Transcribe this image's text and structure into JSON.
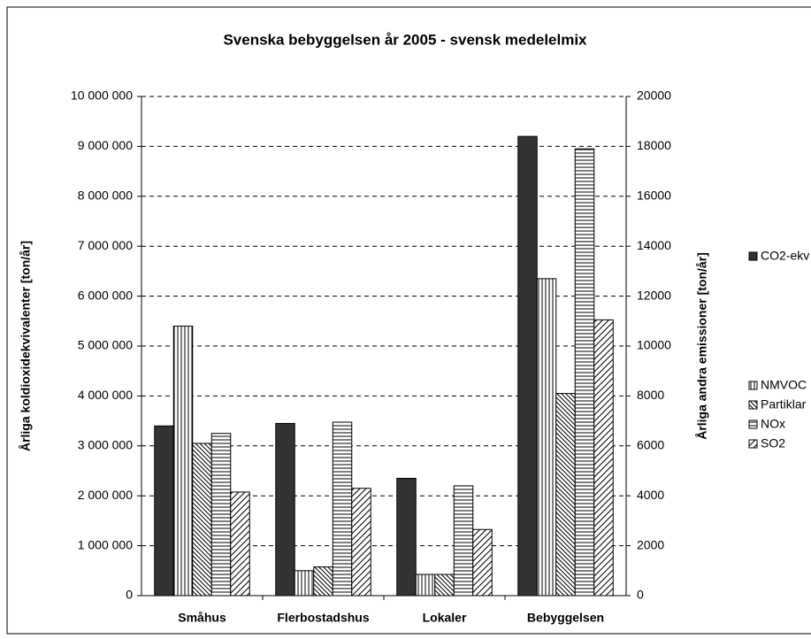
{
  "chart_data": {
    "type": "bar",
    "title": "Svenska bebyggelsen år 2005 - svensk medelelmix",
    "y_label": "Årliga koldioxidekvivalenter [ton/år]",
    "y2_label": "Årliga andra emissioner [ton/år]",
    "categories": [
      "Småhus",
      "Flerbostadshus",
      "Lokaler",
      "Bebyggelsen"
    ],
    "series": [
      {
        "name": "CO2-ekv",
        "color": "#333333",
        "pattern": "solid",
        "values": [
          3400000,
          3450000,
          2350000,
          9200000
        ]
      },
      {
        "name": "NMVOC",
        "color": "#000000",
        "pattern": "vertical",
        "axis": "y2",
        "values": [
          10800,
          1000,
          850,
          12700
        ]
      },
      {
        "name": "Partiklar",
        "color": "#000000",
        "pattern": "backslash",
        "axis": "y2",
        "values": [
          6100,
          1150,
          850,
          8100
        ]
      },
      {
        "name": "NOx",
        "color": "#000000",
        "pattern": "horizontal",
        "axis": "y2",
        "values": [
          6500,
          6950,
          4400,
          17900
        ]
      },
      {
        "name": "SO2",
        "color": "#000000",
        "pattern": "slash",
        "axis": "y2",
        "values": [
          4150,
          4300,
          2650,
          11050
        ]
      }
    ],
    "ylim": [
      0,
      10000000
    ],
    "yticks": [
      0,
      {
        "value": 1000000,
        "label": "1 000 000"
      },
      {
        "value": 2000000,
        "label": "2 000 000"
      },
      {
        "value": 3000000,
        "label": "3 000 000"
      },
      {
        "value": 4000000,
        "label": "4 000 000"
      },
      {
        "value": 5000000,
        "label": "5 000 000"
      },
      {
        "value": 6000000,
        "label": "6 000 000"
      },
      {
        "value": 7000000,
        "label": "7 000 000"
      },
      {
        "value": 8000000,
        "label": "8 000 000"
      },
      {
        "value": 9000000,
        "label": "9 000 000"
      },
      {
        "value": 10000000,
        "label": "10 000 000"
      }
    ],
    "y2lim": [
      0,
      20000
    ],
    "y2ticks": [
      0,
      2000,
      4000,
      6000,
      8000,
      10000,
      12000,
      14000,
      16000,
      18000,
      20000
    ],
    "grid": true
  }
}
